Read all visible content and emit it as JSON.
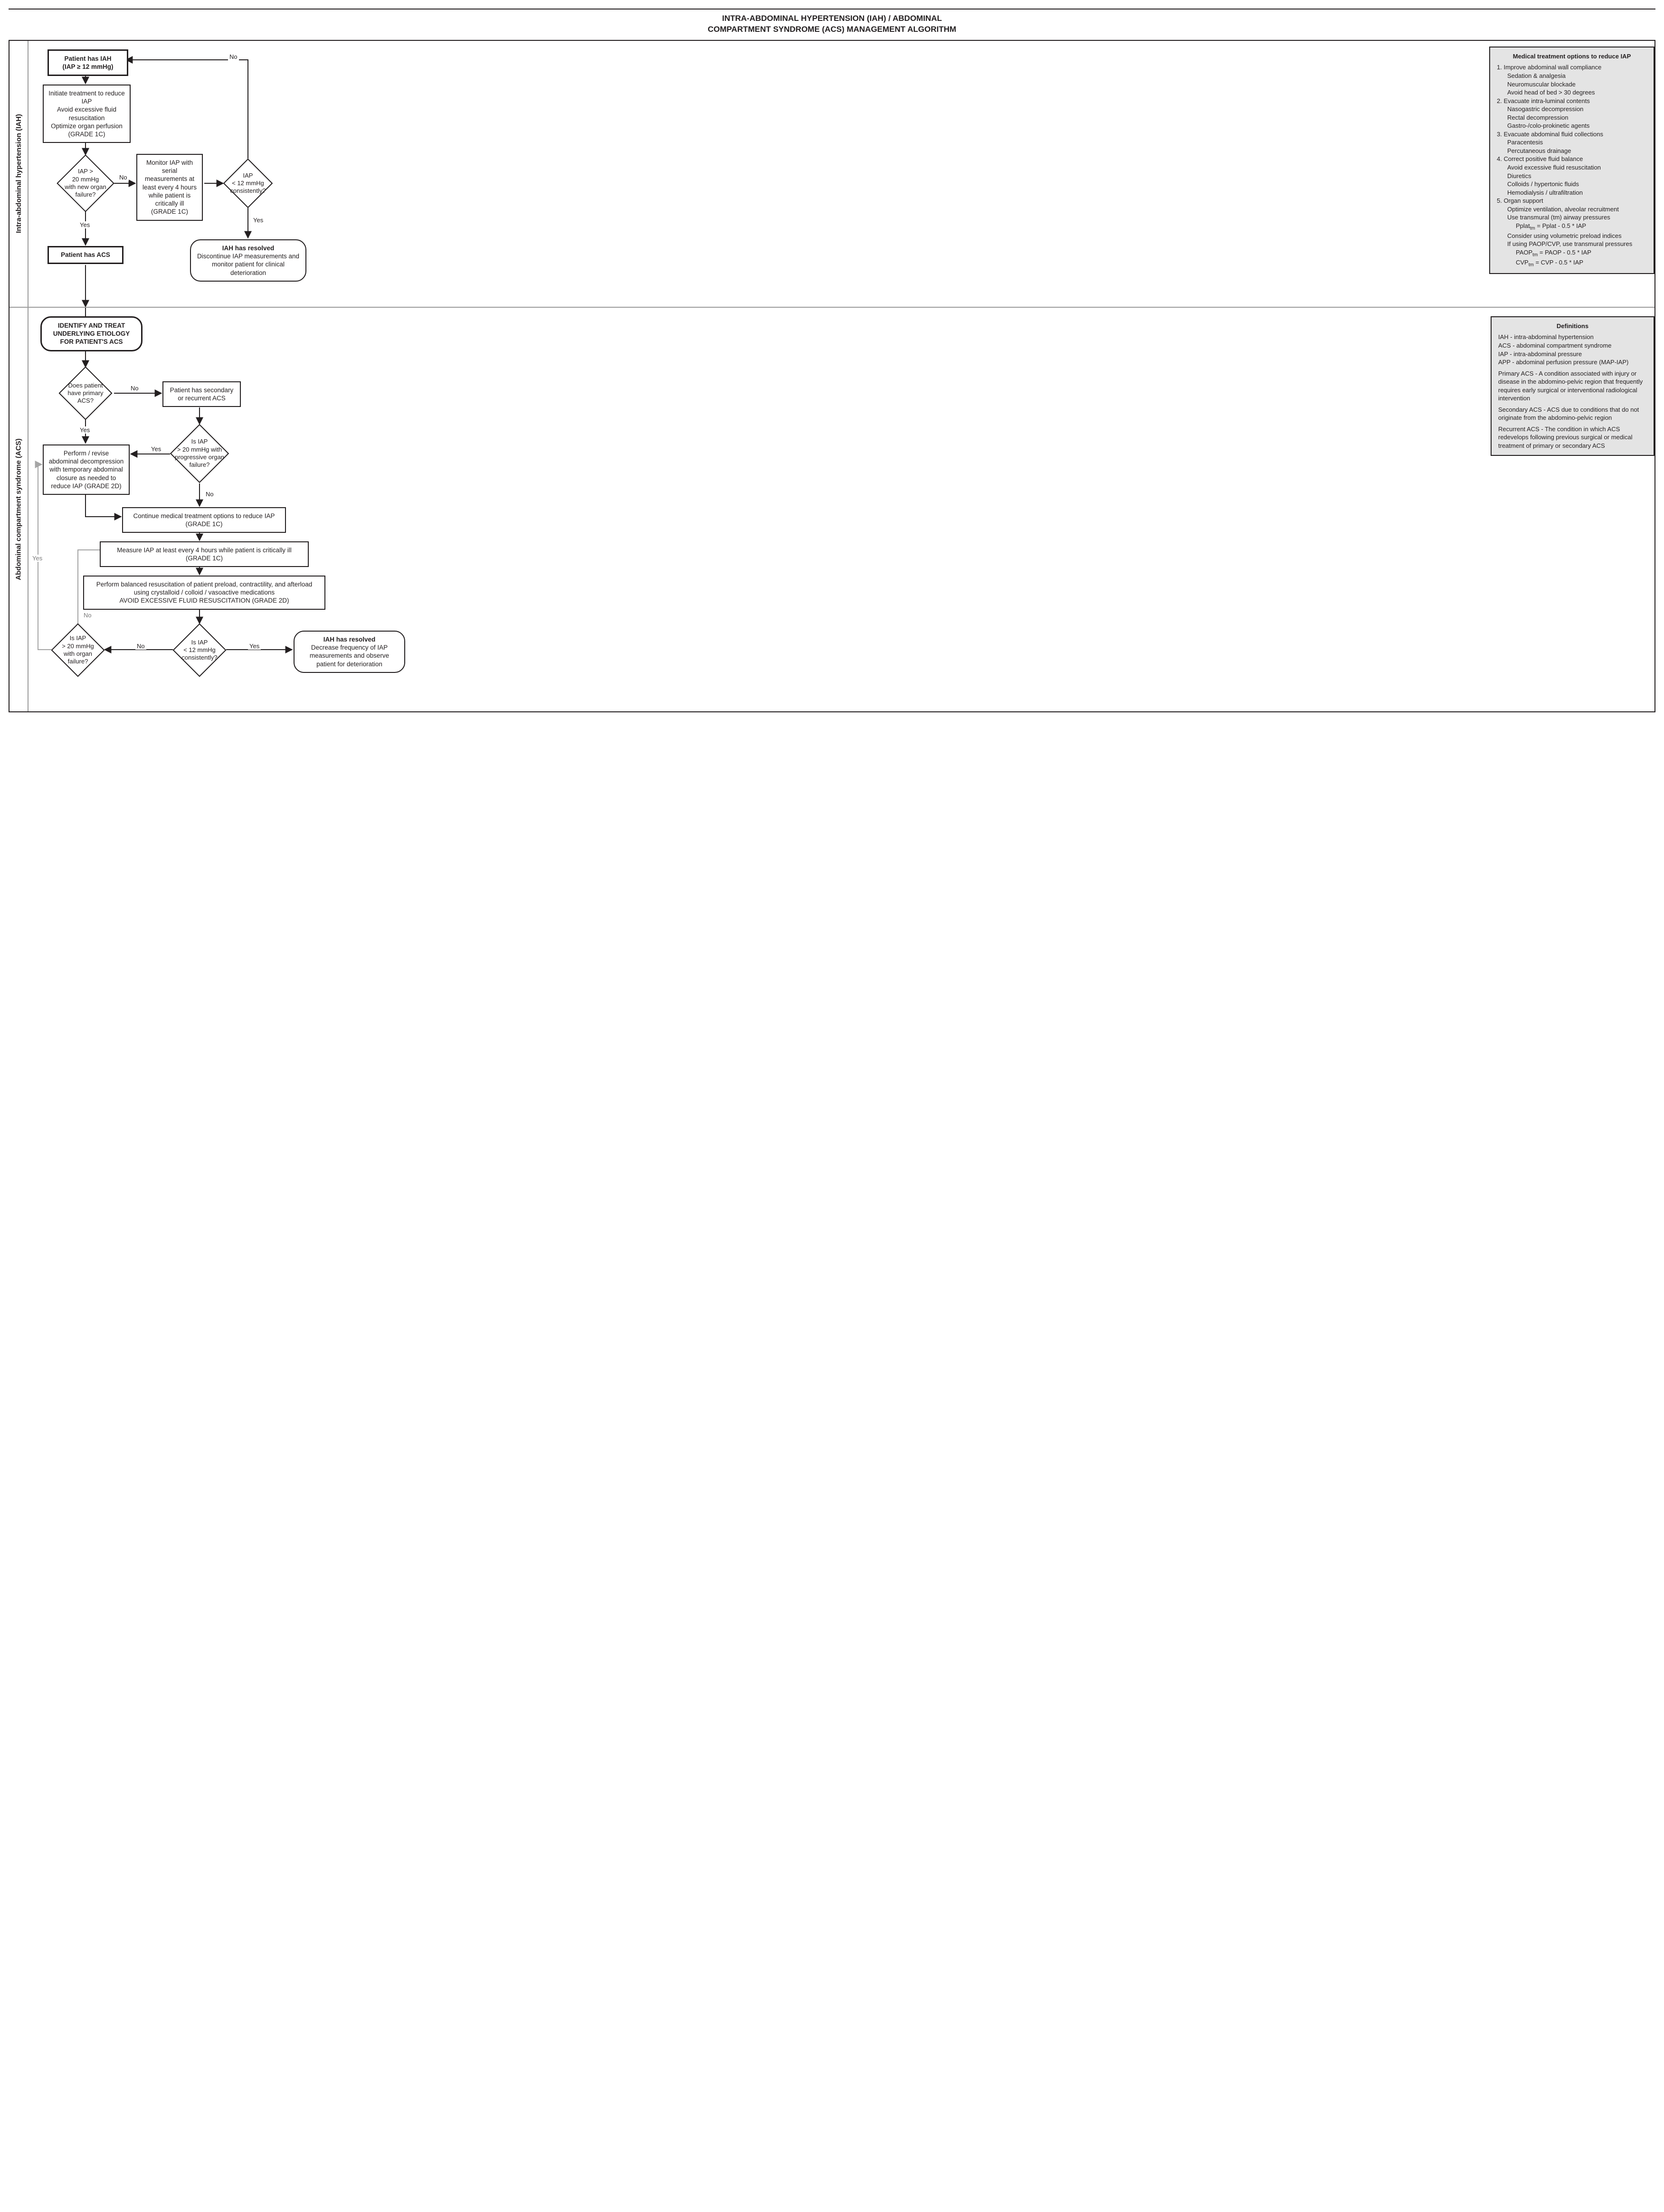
{
  "colors": {
    "fg": "#231f20",
    "panel_bg": "#e4e4e4",
    "divider": "#9b9b9b",
    "grey_edge": "#a5a5a5"
  },
  "title": {
    "line1": "INTRA-ABDOMINAL HYPERTENSION (IAH) / ABDOMINAL",
    "line2": "COMPARTMENT SYNDROME (ACS) MANAGEMENT ALGORITHM"
  },
  "labels": {
    "yes": "Yes",
    "no": "No"
  },
  "sectionA": {
    "vlabel": "Intra-abdominal hypertension (IAH)",
    "n1": "Patient has IAH\n(IAP ≥ 12 mmHg)",
    "n2": "Initiate treatment to reduce IAP\nAvoid excessive fluid resuscitation\nOptimize organ perfusion\n(GRADE 1C)",
    "d1": "IAP >\n20 mmHg\nwith new organ\nfailure?",
    "n3": "Monitor IAP with serial measurements at least every 4 hours while patient is critically ill\n(GRADE 1C)",
    "d2": "IAP\n< 12 mmHg\nconsistently?",
    "n4": "Patient has ACS",
    "n5_title": "IAH has resolved",
    "n5_body": "Discontinue IAP measurements and monitor patient for clinical deterioration",
    "panel": {
      "title": "Medical treatment options to reduce IAP",
      "items": [
        {
          "lvl": 1,
          "t": "1. Improve abdominal wall compliance"
        },
        {
          "lvl": 2,
          "t": "Sedation & analgesia"
        },
        {
          "lvl": 2,
          "t": "Neuromuscular blockade"
        },
        {
          "lvl": 2,
          "t": "Avoid head of bed > 30 degrees"
        },
        {
          "lvl": 1,
          "t": "2. Evacuate intra-luminal contents"
        },
        {
          "lvl": 2,
          "t": "Nasogastric decompression"
        },
        {
          "lvl": 2,
          "t": "Rectal decompression"
        },
        {
          "lvl": 2,
          "t": "Gastro-/colo-prokinetic agents"
        },
        {
          "lvl": 1,
          "t": "3. Evacuate abdominal fluid collections"
        },
        {
          "lvl": 2,
          "t": "Paracentesis"
        },
        {
          "lvl": 2,
          "t": "Percutaneous drainage"
        },
        {
          "lvl": 1,
          "t": "4. Correct positive fluid balance"
        },
        {
          "lvl": 2,
          "t": "Avoid excessive fluid resuscitation"
        },
        {
          "lvl": 2,
          "t": "Diuretics"
        },
        {
          "lvl": 2,
          "t": "Colloids / hypertonic fluids"
        },
        {
          "lvl": 2,
          "t": "Hemodialysis / ultrafiltration"
        },
        {
          "lvl": 1,
          "t": "5. Organ support"
        },
        {
          "lvl": 2,
          "t": "Optimize ventilation, alveolar recruitment"
        },
        {
          "lvl": 2,
          "t": "Use transmural (tm) airway pressures"
        },
        {
          "lvl": 3,
          "t": "Pplat<sub>tm</sub> = Pplat - 0.5 * IAP"
        },
        {
          "lvl": 2,
          "t": "Consider using volumetric preload indices"
        },
        {
          "lvl": 2,
          "t": "If using PAOP/CVP, use transmural pressures"
        },
        {
          "lvl": 3,
          "t": "PAOP<sub>tm</sub> = PAOP - 0.5 * IAP"
        },
        {
          "lvl": 3,
          "t": "CVP<sub>tm</sub> = CVP - 0.5 * IAP"
        }
      ]
    }
  },
  "sectionB": {
    "vlabel": "Abdominal compartment syndrome (ACS)",
    "n1": "IDENTIFY AND TREAT UNDERLYING ETIOLOGY FOR PATIENT'S ACS",
    "d1": "Does patient\nhave primary\nACS?",
    "n2": "Patient has secondary or recurrent ACS",
    "d2": "Is IAP\n> 20 mmHg with\nprogressive organ\nfailure?",
    "n3": "Perform / revise abdominal decompression with temporary abdominal closure as needed to reduce IAP (GRADE 2D)",
    "n4": "Continue medical treatment options to reduce IAP\n(GRADE 1C)",
    "n5": "Measure IAP at least every 4 hours while patient is critically ill\n(GRADE 1C)",
    "n6": "Perform balanced resuscitation of patient preload, contractility, and afterload using crystalloid / colloid / vasoactive medications\nAVOID EXCESSIVE FLUID RESUSCITATION (GRADE 2D)",
    "d3": "Is IAP\n< 12 mmHg\nconsistently?",
    "d4": "Is IAP\n> 20 mmHg\nwith organ\nfailure?",
    "n7_title": "IAH has resolved",
    "n7_body": "Decrease frequency of IAP measurements and observe patient for deterioration",
    "panel": {
      "title": "Definitions",
      "rows": [
        "IAH - intra-abdominal hypertension",
        "ACS - abdominal compartment syndrome",
        "IAP - intra-abdominal pressure",
        "APP - abdominal perfusion pressure (MAP-IAP)",
        "",
        "Primary ACS - A condition associated with injury or disease in the abdomino-pelvic region that frequently requires early surgical or interventional radiological intervention",
        "",
        "Secondary ACS - ACS due to conditions that do not originate from the abdomino-pelvic region",
        "",
        "Recurrent ACS - The condition in which ACS redevelops following previous surgical or medical treatment of primary or secondary ACS"
      ]
    }
  }
}
